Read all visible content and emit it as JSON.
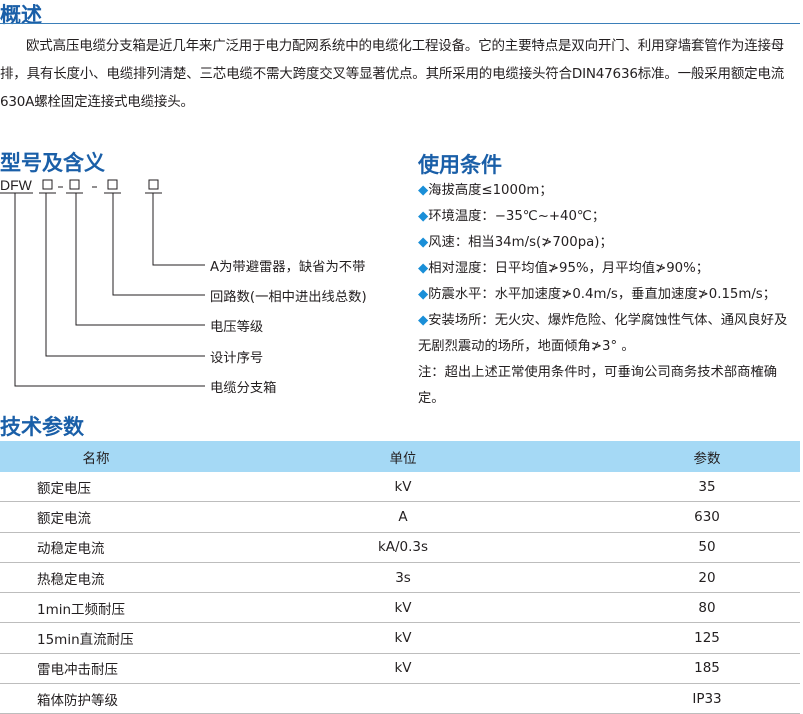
{
  "overview": {
    "title": "概述",
    "paragraph": "欧式高压电缆分支箱是近几年来广泛用于电力配网系统中的电缆化工程设备。它的主要特点是双向开门、利用穿墙套管作为连接母排，具有长度小、电缆排列清楚、三芯电缆不需大跨度交叉等显著优点。其所采用的电缆接头符合DIN47636标准。一般采用额定电流630A螺栓固定连接式电缆接头。"
  },
  "model": {
    "title": "型号及含义",
    "prefix": "DFW",
    "meanings": [
      "A为带避雷器，缺省为不带",
      "回路数(一相中进出线总数)",
      "电压等级",
      "设计序号",
      "电缆分支箱"
    ]
  },
  "conditions": {
    "title": "使用条件",
    "items": [
      "海拔高度≤1000m；",
      "环境温度：−35℃~+40℃；",
      "风速：相当34m/s(≯700pa)；",
      "相对湿度：日平均值≯95%，月平均值≯90%；",
      "防震水平：水平加速度≯0.4m/s，垂直加速度≯0.15m/s；",
      "安装场所：无火灾、爆炸危险、化学腐蚀性气体、通风良好及无剧烈震动的场所，地面倾角≯3° 。"
    ],
    "note": "注：超出上述正常使用条件时，可垂询公司商务技术部商榷确定。",
    "bullet_color": "#1a8fd8"
  },
  "specs": {
    "title": "技术参数",
    "headers": [
      "名称",
      "单位",
      "参数"
    ],
    "rows": [
      [
        "额定电压",
        "kV",
        "35"
      ],
      [
        "额定电流",
        "A",
        "630"
      ],
      [
        "动稳定电流",
        "kA/0.3s",
        "50"
      ],
      [
        "热稳定电流",
        "3s",
        "20"
      ],
      [
        "1min工频耐压",
        "kV",
        "80"
      ],
      [
        "15min直流耐压",
        "kV",
        "125"
      ],
      [
        "雷电冲击耐压",
        "kV",
        "185"
      ],
      [
        "箱体防护等级",
        "",
        "IP33"
      ]
    ]
  },
  "colors": {
    "heading": "#1a5fa8",
    "table_header": "#a5d9f5"
  }
}
